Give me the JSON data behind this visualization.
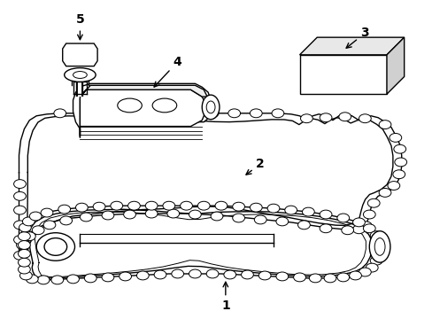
{
  "background_color": "#ffffff",
  "line_color": "#000000",
  "line_width": 1.0,
  "label_fontsize": 10
}
